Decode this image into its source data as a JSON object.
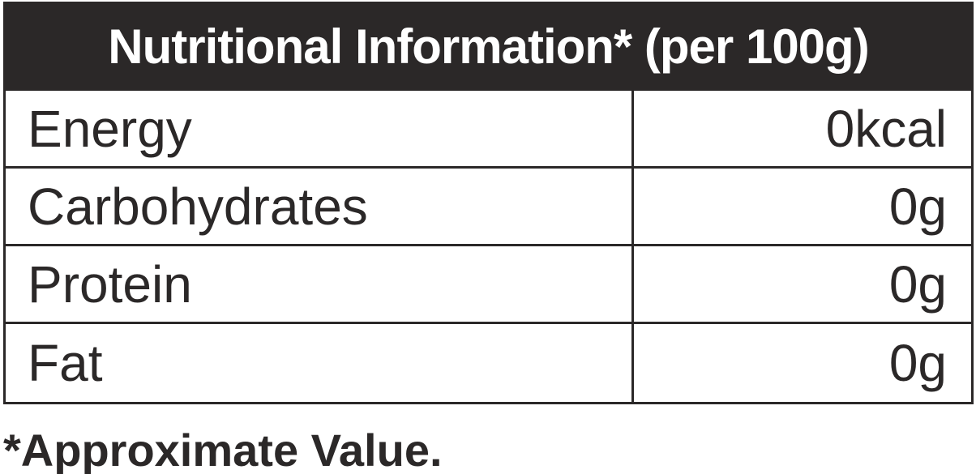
{
  "header": {
    "title": "Nutritional Information* (per 100g)"
  },
  "table": {
    "rows": [
      {
        "label": "Energy",
        "value": "0kcal"
      },
      {
        "label": "Carbohydrates",
        "value": "0g"
      },
      {
        "label": "Protein",
        "value": "0g"
      },
      {
        "label": "Fat",
        "value": "0g"
      }
    ]
  },
  "footer": {
    "note": "*Approximate Value."
  },
  "colors": {
    "ink": "#2b2828",
    "header_bg": "#2b2828",
    "header_text": "#ffffff",
    "row_bg": "#ffffff"
  }
}
